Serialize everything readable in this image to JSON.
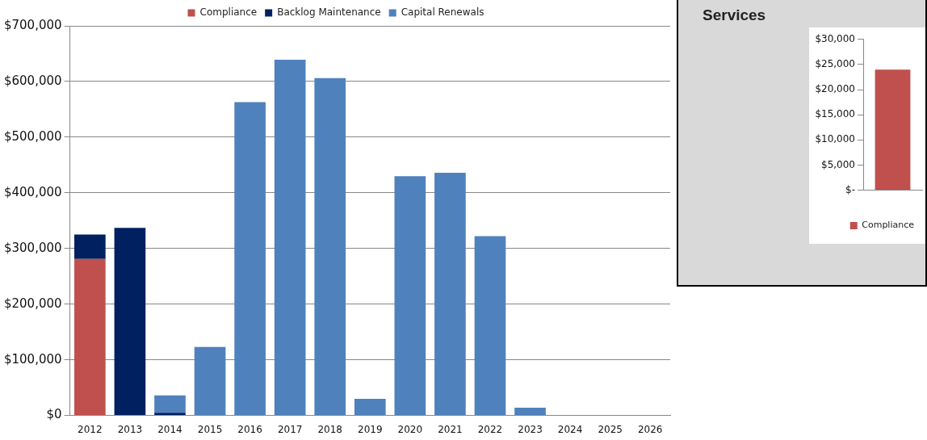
{
  "chart_data": [
    {
      "type": "bar",
      "stacked": true,
      "categories": [
        "2012",
        "2013",
        "2014",
        "2015",
        "2016",
        "2017",
        "2018",
        "2019",
        "2020",
        "2021",
        "2022",
        "2023",
        "2024",
        "2025",
        "2026"
      ],
      "series": [
        {
          "name": "Compliance",
          "color": "#c0504d",
          "values": [
            281000,
            null,
            null,
            null,
            null,
            null,
            null,
            null,
            null,
            null,
            null,
            null,
            null,
            null,
            null
          ]
        },
        {
          "name": "Backlog Maintenance",
          "color": "#002060",
          "values": [
            44000,
            337000,
            5000,
            null,
            null,
            null,
            null,
            null,
            null,
            null,
            null,
            null,
            null,
            null,
            null
          ]
        },
        {
          "name": "Capital Renewals",
          "color": "#4f81bd",
          "values": [
            null,
            null,
            31000,
            123000,
            563000,
            639000,
            606000,
            30000,
            430000,
            436000,
            322000,
            14000,
            null,
            null,
            null
          ]
        }
      ],
      "ylim": [
        0,
        700000
      ],
      "yticks": [
        {
          "value": 0,
          "label": "$0"
        },
        {
          "value": 100000,
          "label": "$100,000"
        },
        {
          "value": 200000,
          "label": "$200,000"
        },
        {
          "value": 300000,
          "label": "$300,000"
        },
        {
          "value": 400000,
          "label": "$400,000"
        },
        {
          "value": 500000,
          "label": "$500,000"
        },
        {
          "value": 600000,
          "label": "$600,000"
        },
        {
          "value": 700000,
          "label": "$700,000"
        }
      ],
      "grid": "y",
      "legend": "top"
    },
    {
      "type": "bar",
      "title": "Services",
      "categories": [
        null
      ],
      "series": [
        {
          "name": "Compliance",
          "color": "#c0504d",
          "values": [
            24000
          ]
        }
      ],
      "ylim": [
        0,
        30000
      ],
      "yticks": [
        {
          "value": 0,
          "label": "$-"
        },
        {
          "value": 5000,
          "label": "$5,000"
        },
        {
          "value": 10000,
          "label": "$10,000"
        },
        {
          "value": 15000,
          "label": "$15,000"
        },
        {
          "value": 20000,
          "label": "$20,000"
        },
        {
          "value": 25000,
          "label": "$25,000"
        },
        {
          "value": 30000,
          "label": "$30,000"
        }
      ],
      "grid": false,
      "legend": "bottom"
    }
  ]
}
